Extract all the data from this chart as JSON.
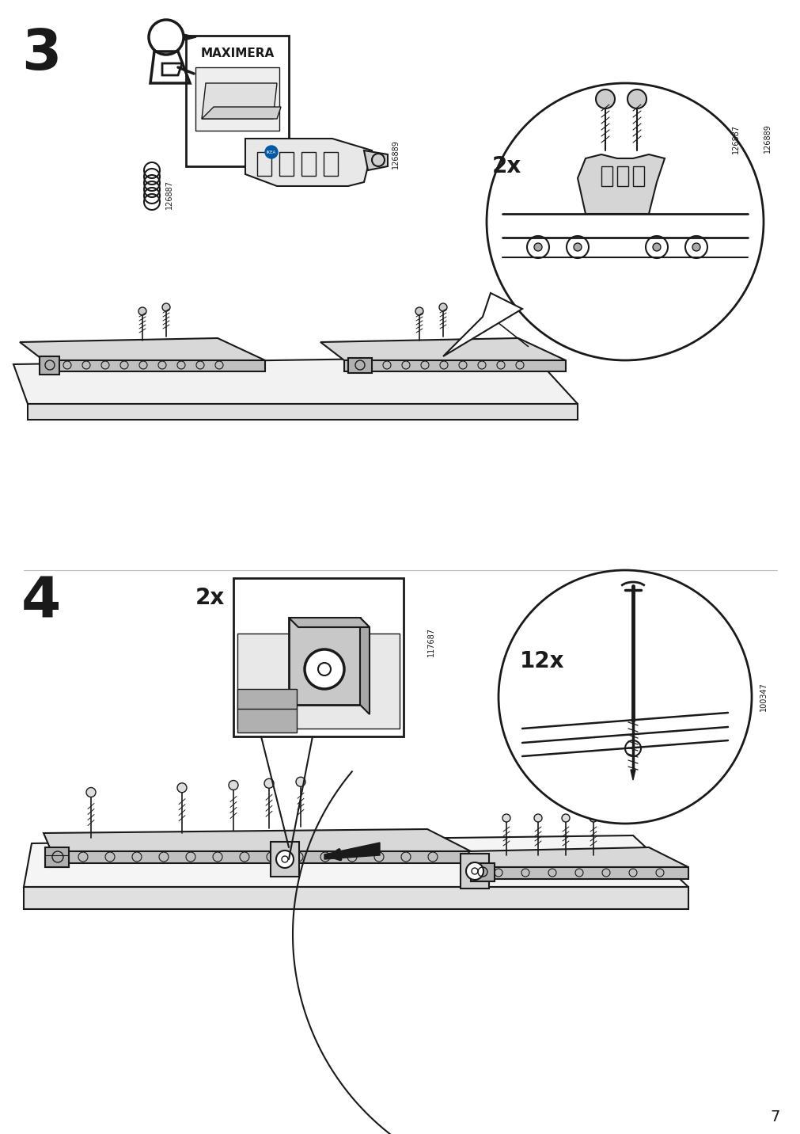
{
  "bg_color": "#ffffff",
  "step3_number": "3",
  "step4_number": "4",
  "page_number": "7",
  "step3_2x_label": "2x",
  "step4_2x_label": "2x",
  "step4_12x_label": "12x",
  "part_126887": "126887",
  "part_126889": "126889",
  "part_117687": "117687",
  "part_100347": "100347",
  "maximera_label": "MAXIMERA",
  "lc": "#1a1a1a",
  "fig_width": 10.12,
  "fig_height": 14.32,
  "dpi": 100
}
